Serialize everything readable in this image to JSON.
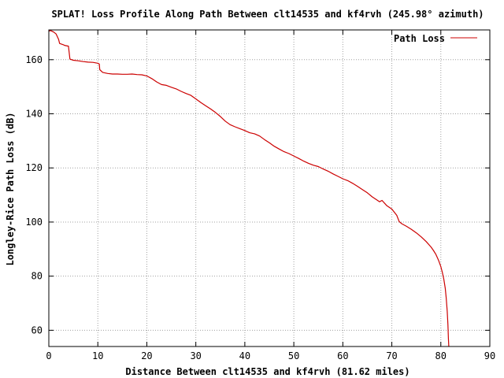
{
  "chart_data": {
    "type": "line",
    "title": "SPLAT! Loss Profile Along Path Between clt14535 and kf4rvh (245.98° azimuth)",
    "xlabel": "Distance Between clt14535 and kf4rvh (81.62 miles)",
    "ylabel": "Longley-Rice Path Loss (dB)",
    "xlim": [
      0,
      90
    ],
    "ylim": [
      54,
      171
    ],
    "xticks": [
      0,
      10,
      20,
      30,
      40,
      50,
      60,
      70,
      80,
      90
    ],
    "yticks": [
      60,
      80,
      100,
      120,
      140,
      160
    ],
    "grid": true,
    "legend": "top-right",
    "colors": {
      "series": "#cc0000",
      "grid": "#a0a0a0"
    },
    "series": [
      {
        "name": "Path Loss",
        "x": [
          0.0,
          0.3,
          1.0,
          1.5,
          2.0,
          2.2,
          3.0,
          3.2,
          4.0,
          4.2,
          4.3,
          5.0,
          6.0,
          7.0,
          8.0,
          9.0,
          10.0,
          10.3,
          10.4,
          11.0,
          12.0,
          13.0,
          14.0,
          15.0,
          16.0,
          17.0,
          18.0,
          19.0,
          20.0,
          21.0,
          22.0,
          23.0,
          24.0,
          25.0,
          26.0,
          27.0,
          28.0,
          29.0,
          30.0,
          31.0,
          32.0,
          33.0,
          34.0,
          35.0,
          36.0,
          37.0,
          38.0,
          39.0,
          40.0,
          41.0,
          42.0,
          43.0,
          44.0,
          45.0,
          46.0,
          47.0,
          48.0,
          49.0,
          50.0,
          51.0,
          52.0,
          53.0,
          54.0,
          55.0,
          56.0,
          57.0,
          58.0,
          59.0,
          60.0,
          61.0,
          62.0,
          63.0,
          64.0,
          65.0,
          66.0,
          67.0,
          67.5,
          68.0,
          69.0,
          70.0,
          71.0,
          71.5,
          72.0,
          73.0,
          74.0,
          75.0,
          76.0,
          77.0,
          78.0,
          78.5,
          79.0,
          79.5,
          80.0,
          80.3,
          80.6,
          80.9,
          81.1,
          81.3,
          81.45,
          81.55,
          81.62
        ],
        "values": [
          170.5,
          170.8,
          170.2,
          169.5,
          167.5,
          166.0,
          165.5,
          165.3,
          165.0,
          162.0,
          160.2,
          159.8,
          159.6,
          159.3,
          159.1,
          159.0,
          158.7,
          158.4,
          156.3,
          155.3,
          154.9,
          154.7,
          154.7,
          154.6,
          154.6,
          154.7,
          154.5,
          154.4,
          154.0,
          153.0,
          151.8,
          150.8,
          150.5,
          149.8,
          149.2,
          148.3,
          147.5,
          146.8,
          145.5,
          144.2,
          143.0,
          141.8,
          140.5,
          139.0,
          137.3,
          136.0,
          135.2,
          134.5,
          133.8,
          133.0,
          132.6,
          131.8,
          130.5,
          129.3,
          128.0,
          127.0,
          126.0,
          125.3,
          124.4,
          123.5,
          122.5,
          121.7,
          121.0,
          120.5,
          119.6,
          118.8,
          117.8,
          116.9,
          116.0,
          115.3,
          114.3,
          113.2,
          112.0,
          110.8,
          109.3,
          108.1,
          107.5,
          108.0,
          106.0,
          104.8,
          102.5,
          100.2,
          99.4,
          98.4,
          97.3,
          96.0,
          94.5,
          92.8,
          90.8,
          89.5,
          88.0,
          86.0,
          83.5,
          81.5,
          79.0,
          75.5,
          72.0,
          67.0,
          62.0,
          57.0,
          54.0
        ]
      }
    ]
  }
}
